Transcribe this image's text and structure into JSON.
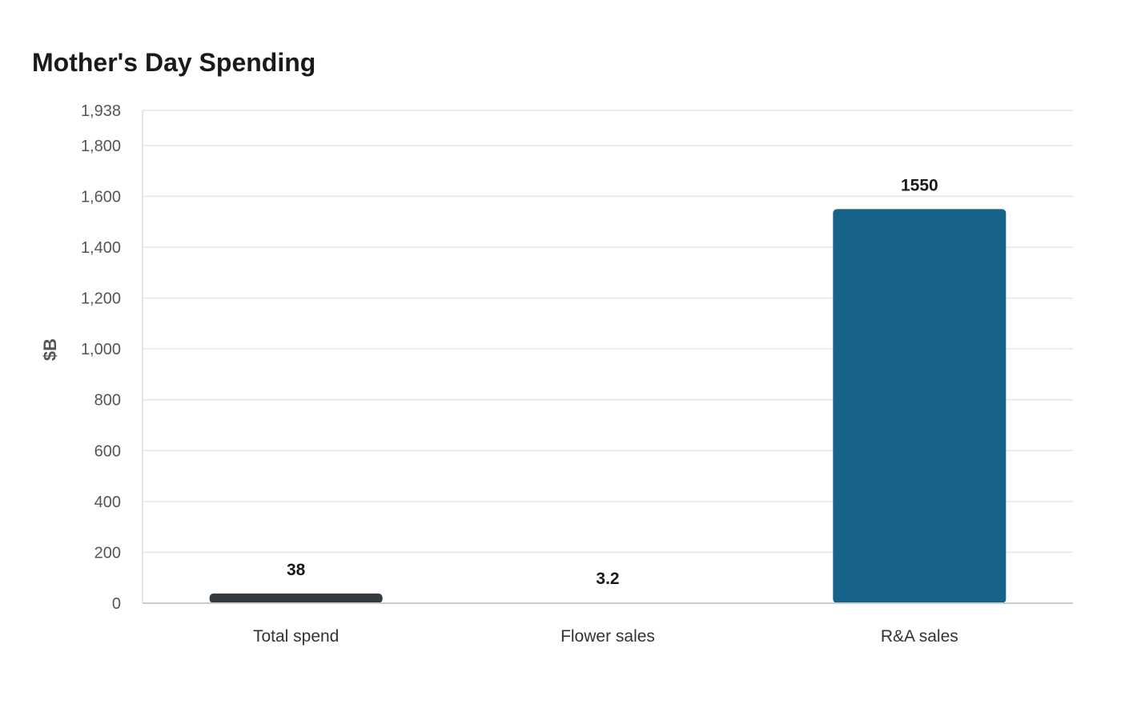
{
  "chart_data": {
    "type": "bar",
    "title": "Mother's Day Spending",
    "xlabel": "",
    "ylabel": "$B",
    "categories": [
      "Total spend",
      "Flower sales",
      "R&A sales"
    ],
    "values": [
      38,
      3.2,
      1550
    ],
    "value_labels": [
      "38",
      "3.2",
      "1550"
    ],
    "bar_colors": [
      "#333b3e",
      "#333b3e",
      "#176289"
    ],
    "ylim": [
      0,
      1938
    ],
    "y_ticks": [
      0,
      200,
      400,
      600,
      800,
      1000,
      1200,
      1400,
      1600,
      1800,
      1938
    ],
    "y_tick_labels": [
      "0",
      "200",
      "400",
      "600",
      "800",
      "1,000",
      "1,200",
      "1,400",
      "1,600",
      "1,800",
      "1,938"
    ],
    "grid": true,
    "legend": "none"
  }
}
